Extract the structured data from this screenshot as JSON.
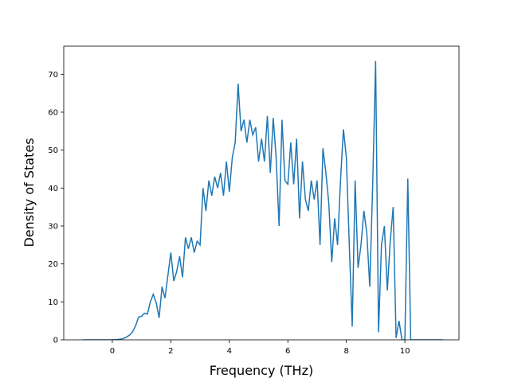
{
  "chart_data": {
    "type": "line",
    "x_label": "Frequency (THz)",
    "y_label": "Density of States",
    "x": [
      -1.0,
      -0.9,
      -0.8,
      -0.7,
      -0.6,
      -0.5,
      -0.4,
      -0.3,
      -0.2,
      -0.1,
      0.0,
      0.1,
      0.2,
      0.3,
      0.4,
      0.5,
      0.6,
      0.7,
      0.8,
      0.9,
      1.0,
      1.1,
      1.2,
      1.3,
      1.4,
      1.5,
      1.6,
      1.7,
      1.8,
      1.9,
      2.0,
      2.1,
      2.2,
      2.3,
      2.4,
      2.5,
      2.6,
      2.7,
      2.8,
      2.9,
      3.0,
      3.1,
      3.2,
      3.3,
      3.4,
      3.5,
      3.6,
      3.7,
      3.8,
      3.9,
      4.0,
      4.1,
      4.2,
      4.3,
      4.4,
      4.5,
      4.6,
      4.7,
      4.8,
      4.9,
      5.0,
      5.1,
      5.2,
      5.3,
      5.4,
      5.5,
      5.6,
      5.7,
      5.8,
      5.9,
      6.0,
      6.1,
      6.2,
      6.3,
      6.4,
      6.5,
      6.6,
      6.7,
      6.8,
      6.9,
      7.0,
      7.1,
      7.2,
      7.3,
      7.4,
      7.5,
      7.6,
      7.7,
      7.8,
      7.9,
      8.0,
      8.1,
      8.2,
      8.3,
      8.4,
      8.5,
      8.6,
      8.7,
      8.8,
      8.9,
      9.0,
      9.1,
      9.2,
      9.3,
      9.4,
      9.5,
      9.6,
      9.7,
      9.8,
      9.9,
      10.0,
      10.1,
      10.2,
      10.3,
      10.4,
      10.5,
      10.6,
      10.7,
      10.8,
      10.9,
      11.0,
      11.1,
      11.2,
      11.3
    ],
    "series": [
      {
        "name": "DOS",
        "color": "#1f77b4",
        "values": [
          0,
          0,
          0,
          0,
          0,
          0,
          0,
          0,
          0,
          0,
          0,
          0.05,
          0.1,
          0.2,
          0.4,
          0.8,
          1.3,
          2.2,
          3.8,
          6,
          6.2,
          7,
          6.8,
          10,
          12,
          9.8,
          5.8,
          14,
          11,
          17,
          23,
          15.5,
          18,
          22,
          16.5,
          27,
          24,
          27,
          23,
          26,
          25,
          40,
          34,
          42,
          38,
          43,
          40,
          44,
          38,
          47,
          39,
          48,
          52,
          67.5,
          55,
          58,
          52,
          58,
          54,
          56,
          47,
          53,
          47,
          59,
          44,
          58.5,
          48,
          30,
          58,
          42,
          41,
          52,
          41,
          53,
          32,
          47,
          37,
          34,
          42,
          37,
          42,
          25,
          50.5,
          44,
          36,
          20.5,
          32,
          25,
          42,
          55.5,
          48,
          25,
          3.5,
          42,
          19,
          25,
          34,
          28,
          14,
          41,
          73.5,
          2,
          25,
          30,
          13,
          26,
          35,
          0.5,
          5,
          0,
          0,
          42.5,
          0,
          0,
          0,
          0,
          0,
          0,
          0,
          0,
          0,
          0,
          0,
          0
        ]
      }
    ],
    "xlim": [
      -1.66,
      11.85
    ],
    "ylim": [
      0,
      77.4
    ],
    "xticks": [
      0,
      2,
      4,
      6,
      8,
      10
    ],
    "yticks": [
      0,
      10,
      20,
      30,
      40,
      50,
      60,
      70
    ]
  }
}
